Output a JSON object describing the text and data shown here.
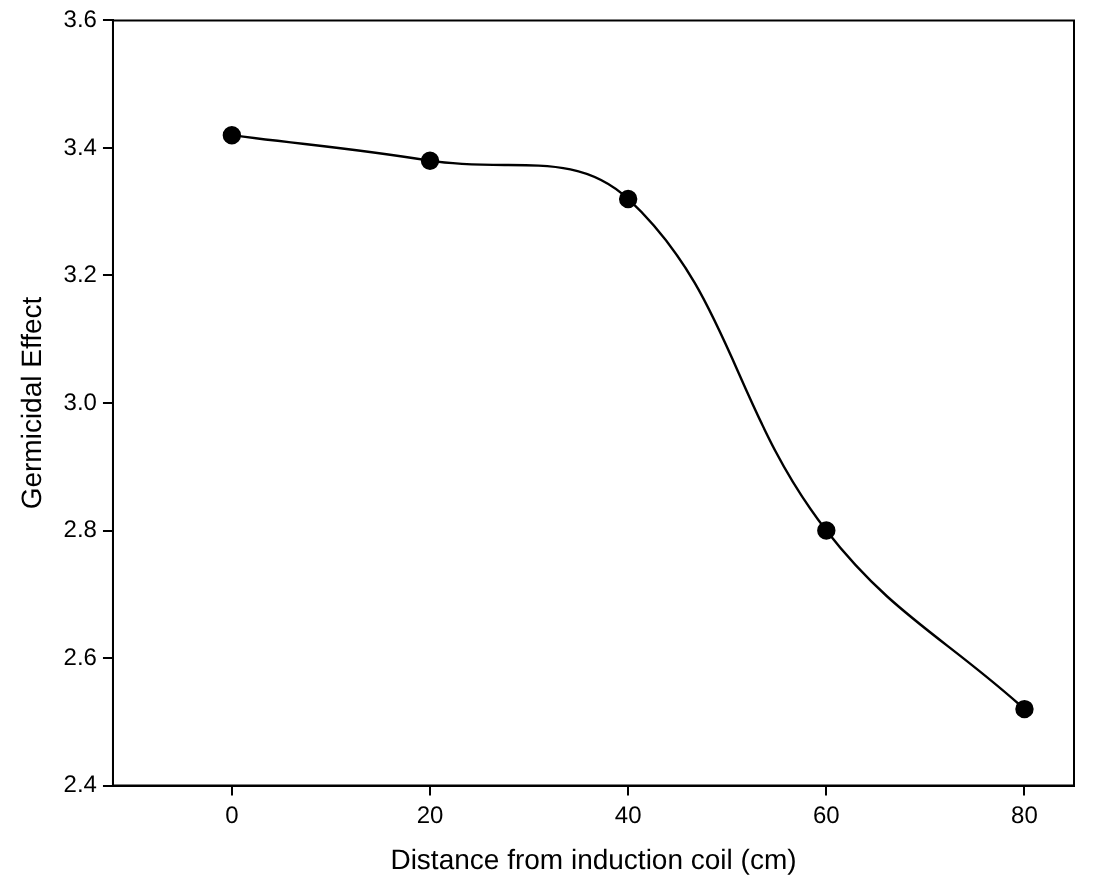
{
  "chart_data": {
    "type": "line",
    "xlabel": "Distance from induction coil (cm)",
    "ylabel": "Germicidal Effect",
    "x": [
      0,
      20,
      40,
      60,
      80
    ],
    "series": [
      {
        "color": "#000000",
        "values": [
          3.42,
          3.38,
          3.32,
          2.8,
          2.52
        ]
      }
    ],
    "xlim": [
      -12,
      85
    ],
    "xticks": [
      0,
      20,
      40,
      60,
      80
    ],
    "ylim": [
      2.4,
      3.6
    ],
    "yticks": [
      {
        "value": 2.4,
        "label": "2.4"
      },
      {
        "value": 2.6,
        "label": "2.6"
      },
      {
        "value": 2.8,
        "label": "2.8"
      },
      {
        "value": 3.0,
        "label": "3.0"
      },
      {
        "value": 3.2,
        "label": "3.2"
      },
      {
        "value": 3.4,
        "label": "3.4"
      },
      {
        "value": 3.6,
        "label": "3.6"
      }
    ],
    "grid": false,
    "legend": false,
    "marker": "circle",
    "line_style": "solid"
  }
}
